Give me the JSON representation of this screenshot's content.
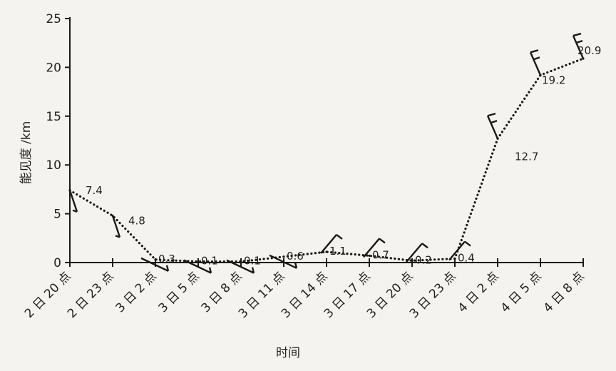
{
  "chart_data": {
    "type": "line",
    "xlabel": "时间",
    "ylabel": "能见度 /km",
    "ylim": [
      0,
      25
    ],
    "yticks": [
      0,
      5,
      10,
      15,
      20,
      25
    ],
    "categories": [
      "2 日 20 点",
      "2 日 23 点",
      "3 日 2 点",
      "3 日 5 点",
      "3 日 8 点",
      "3 日 11 点",
      "3 日 14 点",
      "3 日 17 点",
      "3 日 20 点",
      "3 日 23 点",
      "4 日 2 点",
      "4 日 5 点",
      "4 日 8 点"
    ],
    "values": [
      7.4,
      4.8,
      0.3,
      0.1,
      0.1,
      0.6,
      1.1,
      0.7,
      0.2,
      0.4,
      12.7,
      19.2,
      20.9
    ],
    "value_labels": [
      "7.4",
      "4.8",
      "0.3",
      "0.1",
      "0.1",
      "0.6",
      "1.1",
      "0.7",
      "0.2",
      "0.4",
      "12.7",
      "19.2",
      "20.9"
    ],
    "line_style": "dotted",
    "grid": false,
    "wind_barbs": true,
    "colors": {
      "line": "#1a1a1a",
      "axis": "#1a1a1a",
      "text": "#222222",
      "background": "#f4f3ef"
    }
  }
}
